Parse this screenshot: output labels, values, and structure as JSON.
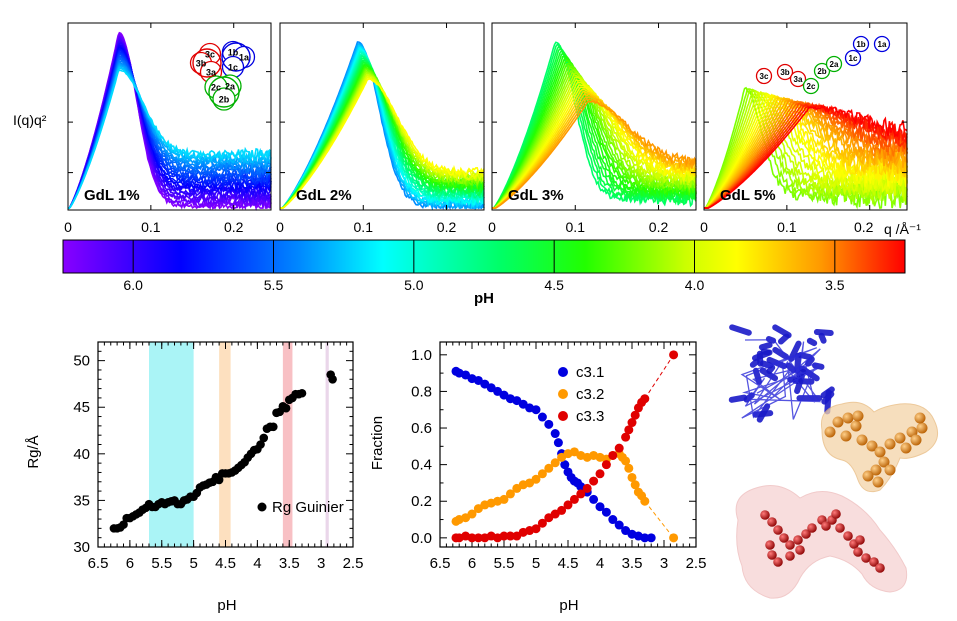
{
  "saxs_panels": {
    "ylabel": "I(q)q²",
    "q_unit_label": "q /Å⁻¹",
    "x_ticks": [
      "0",
      "0.1",
      "0.2"
    ],
    "panels": [
      {
        "label": "GdL 1%",
        "components": [
          {
            "id": "3c",
            "color": "#e00000"
          },
          {
            "id": "3b",
            "color": "#e00000"
          },
          {
            "id": "3a",
            "color": "#e00000"
          },
          {
            "id": "1b",
            "color": "#0000e0"
          },
          {
            "id": "1a",
            "color": "#0000e0"
          },
          {
            "id": "1c",
            "color": "#0000e0"
          },
          {
            "id": "2a",
            "color": "#00b000"
          },
          {
            "id": "2c",
            "color": "#00b000"
          },
          {
            "id": "2b",
            "color": "#00b000"
          }
        ]
      },
      {
        "label": "GdL 2%",
        "components": []
      },
      {
        "label": "GdL 3%",
        "components": []
      },
      {
        "label": "GdL 5%",
        "components": [
          {
            "id": "3c",
            "color": "#e00000"
          },
          {
            "id": "3b",
            "color": "#e00000"
          },
          {
            "id": "3a",
            "color": "#e00000"
          },
          {
            "id": "2c",
            "color": "#00b000"
          },
          {
            "id": "2b",
            "color": "#00b000"
          },
          {
            "id": "2a",
            "color": "#00b000"
          },
          {
            "id": "1c",
            "color": "#0000e0"
          },
          {
            "id": "1b",
            "color": "#0000e0"
          },
          {
            "id": "1a",
            "color": "#0000e0"
          }
        ]
      }
    ]
  },
  "colorbar": {
    "label": "pH",
    "ticks": [
      "6.0",
      "5.5",
      "5.0",
      "4.5",
      "4.0",
      "3.5"
    ],
    "range": [
      6.25,
      3.25
    ]
  },
  "chart_data": [
    {
      "type": "scatter",
      "xlabel": "pH",
      "ylabel": "Rg/Å",
      "xlim": [
        6.5,
        2.5
      ],
      "ylim": [
        30,
        52
      ],
      "x_ticks": [
        "6.5",
        "6",
        "5.5",
        "5",
        "4.5",
        "4",
        "3.5",
        "3",
        "2.5"
      ],
      "y_ticks": [
        "30",
        "35",
        "40",
        "45",
        "50"
      ],
      "legend": "Rg Guinier",
      "series": [
        {
          "name": "Rg Guinier",
          "x": [
            6.25,
            6.2,
            6.15,
            6.1,
            6.05,
            6.0,
            5.95,
            5.9,
            5.85,
            5.8,
            5.75,
            5.7,
            5.65,
            5.6,
            5.55,
            5.5,
            5.45,
            5.4,
            5.35,
            5.3,
            5.25,
            5.2,
            5.15,
            5.1,
            5.05,
            5.0,
            4.95,
            4.9,
            4.85,
            4.8,
            4.75,
            4.7,
            4.65,
            4.6,
            4.55,
            4.5,
            4.45,
            4.4,
            4.35,
            4.3,
            4.25,
            4.2,
            4.15,
            4.1,
            4.05,
            4.0,
            3.95,
            3.9,
            3.85,
            3.8,
            3.75,
            3.7,
            3.65,
            3.6,
            3.55,
            3.5,
            3.45,
            3.4,
            3.35,
            3.3,
            2.85,
            2.82
          ],
          "y": [
            32.0,
            32.0,
            32.1,
            32.4,
            33.1,
            33.1,
            33.3,
            33.5,
            33.7,
            34.0,
            34.2,
            34.6,
            34.3,
            34.3,
            34.6,
            34.8,
            34.6,
            34.8,
            34.9,
            35.0,
            34.6,
            34.6,
            35.0,
            35.1,
            35.4,
            35.4,
            35.8,
            36.4,
            36.6,
            36.7,
            36.9,
            37.0,
            37.5,
            37.2,
            37.9,
            37.9,
            37.9,
            38.0,
            38.2,
            38.5,
            38.8,
            39.1,
            39.6,
            40.0,
            40.4,
            40.5,
            41.0,
            41.7,
            42.7,
            42.9,
            42.9,
            44.4,
            44.5,
            45.1,
            44.9,
            45.8,
            46.0,
            46.4,
            46.4,
            46.5,
            48.5,
            48.0
          ]
        }
      ],
      "shaded_bands": [
        {
          "from": 5.7,
          "to": 5.0,
          "color": "#aaf4f6"
        },
        {
          "from": 4.6,
          "to": 4.42,
          "color": "#fde0bf"
        },
        {
          "from": 3.6,
          "to": 3.45,
          "color": "#f8c0c4"
        },
        {
          "from": 2.93,
          "to": 2.88,
          "color": "#ead6ea"
        }
      ]
    },
    {
      "type": "line",
      "xlabel": "pH",
      "ylabel": "Fraction",
      "xlim": [
        6.5,
        2.5
      ],
      "ylim": [
        -0.05,
        1.07
      ],
      "x_ticks": [
        "6.5",
        "6",
        "5.5",
        "5",
        "4.5",
        "4",
        "3.5",
        "3",
        "2.5"
      ],
      "y_ticks": [
        "0.0",
        "0.2",
        "0.4",
        "0.6",
        "0.8",
        "1.0"
      ],
      "legend_position": "top-right",
      "series": [
        {
          "name": "c3.1",
          "color": "#0000e0",
          "x": [
            6.25,
            6.2,
            6.1,
            6.0,
            5.9,
            5.8,
            5.7,
            5.6,
            5.5,
            5.4,
            5.3,
            5.2,
            5.1,
            5.0,
            4.9,
            4.8,
            4.7,
            4.65,
            4.6,
            4.55,
            4.5,
            4.45,
            4.4,
            4.35,
            4.3,
            4.2,
            4.1,
            4.0,
            3.9,
            3.8,
            3.7,
            3.6,
            3.5,
            3.4,
            3.3,
            3.2
          ],
          "y": [
            0.91,
            0.9,
            0.89,
            0.87,
            0.86,
            0.84,
            0.82,
            0.8,
            0.78,
            0.76,
            0.75,
            0.73,
            0.71,
            0.7,
            0.66,
            0.62,
            0.57,
            0.52,
            0.46,
            0.4,
            0.36,
            0.33,
            0.31,
            0.3,
            0.28,
            0.25,
            0.21,
            0.17,
            0.14,
            0.1,
            0.07,
            0.04,
            0.02,
            0.01,
            0.0,
            0.0
          ]
        },
        {
          "name": "c3.2",
          "color": "#ff9900",
          "x": [
            6.25,
            6.2,
            6.1,
            6.0,
            5.9,
            5.8,
            5.7,
            5.6,
            5.5,
            5.4,
            5.3,
            5.2,
            5.1,
            5.0,
            4.9,
            4.8,
            4.7,
            4.6,
            4.5,
            4.4,
            4.3,
            4.2,
            4.1,
            4.0,
            3.9,
            3.8,
            3.7,
            3.65,
            3.6,
            3.55,
            3.5,
            3.45,
            3.4,
            3.35,
            3.3,
            2.85
          ],
          "y": [
            0.09,
            0.1,
            0.11,
            0.13,
            0.16,
            0.18,
            0.19,
            0.2,
            0.21,
            0.24,
            0.27,
            0.29,
            0.3,
            0.32,
            0.35,
            0.38,
            0.41,
            0.44,
            0.46,
            0.47,
            0.45,
            0.44,
            0.45,
            0.44,
            0.43,
            0.45,
            0.46,
            0.44,
            0.42,
            0.38,
            0.33,
            0.29,
            0.25,
            0.23,
            0.2,
            0.0
          ]
        },
        {
          "name": "c3.3",
          "color": "#e00000",
          "x": [
            6.25,
            6.2,
            6.1,
            6.0,
            5.9,
            5.8,
            5.7,
            5.6,
            5.5,
            5.4,
            5.3,
            5.2,
            5.1,
            5.0,
            4.9,
            4.8,
            4.7,
            4.6,
            4.5,
            4.4,
            4.3,
            4.2,
            4.1,
            4.0,
            3.9,
            3.8,
            3.7,
            3.6,
            3.55,
            3.5,
            3.45,
            3.4,
            3.35,
            3.3,
            2.85
          ],
          "y": [
            0.0,
            0.0,
            0.01,
            0.0,
            0.0,
            0.0,
            0.01,
            0.0,
            0.01,
            0.01,
            0.01,
            0.03,
            0.04,
            0.05,
            0.08,
            0.11,
            0.13,
            0.15,
            0.18,
            0.21,
            0.24,
            0.27,
            0.31,
            0.35,
            0.4,
            0.45,
            0.49,
            0.55,
            0.59,
            0.63,
            0.67,
            0.71,
            0.74,
            0.76,
            1.0
          ]
        }
      ]
    }
  ],
  "structures": [
    {
      "color": "#1a1ac8"
    },
    {
      "color": "#e08a1a"
    },
    {
      "color": "#c01818"
    }
  ]
}
